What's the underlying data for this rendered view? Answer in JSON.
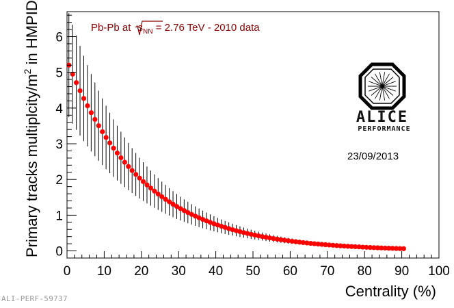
{
  "chart_data": {
    "type": "scatter",
    "xlabel": "Centrality (%)",
    "ylabel_main": "Primary tracks multiplcity/m",
    "ylabel_sup": "2",
    "ylabel_tail": " in HMPID",
    "xlim": [
      0,
      100
    ],
    "ylim": [
      -0.2,
      6.7
    ],
    "x_ticks": [
      0,
      10,
      20,
      30,
      40,
      50,
      60,
      70,
      80,
      90,
      100
    ],
    "y_ticks": [
      0,
      1,
      2,
      3,
      4,
      5,
      6
    ],
    "marker_color": "#ff0000",
    "errorbar_color": "#000000",
    "series": [
      {
        "name": "Pb-Pb 2010 data",
        "x_start": 0.5,
        "x_step": 1,
        "count": 91,
        "decay_start": 5.2,
        "decay_rate": 0.0493,
        "relative_error": 0.28
      }
    ]
  },
  "annotation": {
    "energy_prefix": "Pb-Pb at ",
    "energy_s": "s",
    "energy_sub": "NN",
    "energy_suffix": " = 2.76 TeV - 2010 data",
    "date": "23/09/2013"
  },
  "logo": {
    "name": "ALICE",
    "subtitle": "PERFORMANCE"
  },
  "figure_id": "ALI-PERF-59737"
}
